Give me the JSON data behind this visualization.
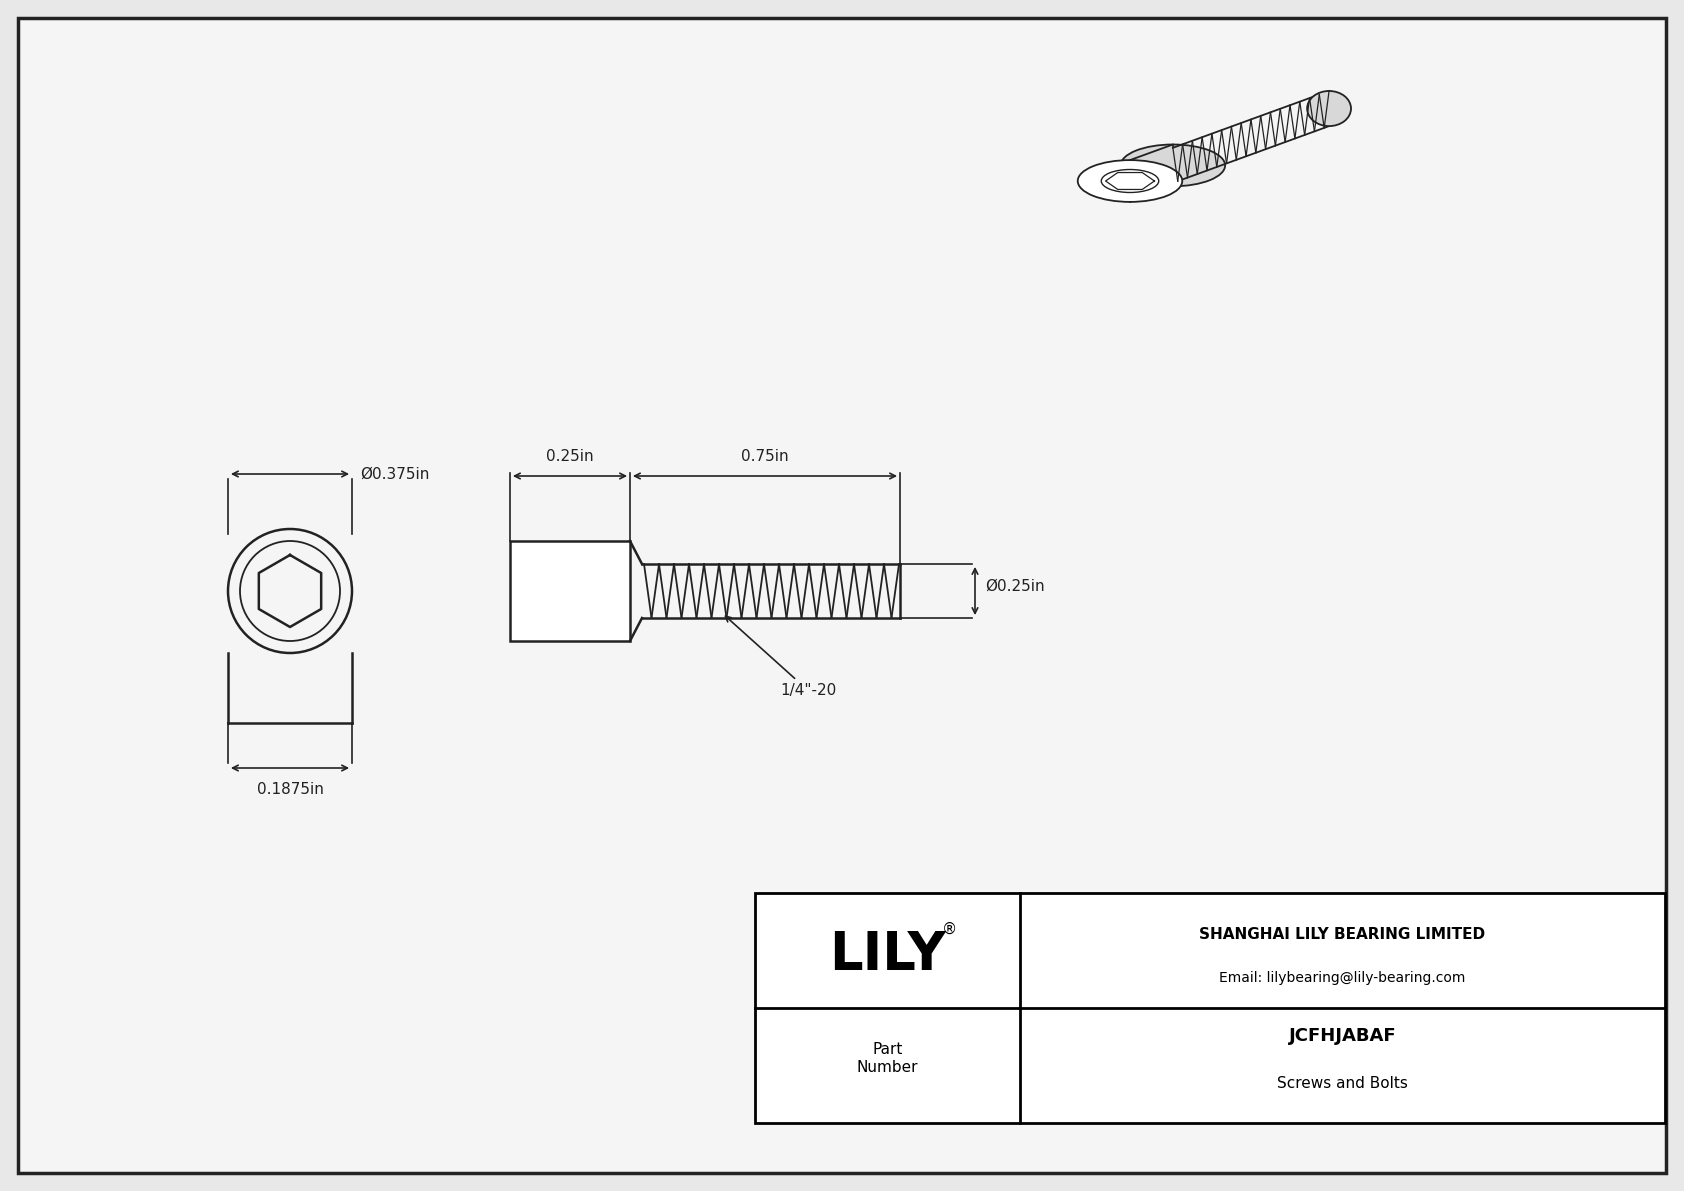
{
  "bg_color": "#e8e8e8",
  "drawing_bg": "#f5f5f5",
  "border_color": "#222222",
  "line_color": "#222222",
  "title": "JCFHJABAF",
  "subtitle": "Screws and Bolts",
  "company": "SHANGHAI LILY BEARING LIMITED",
  "email": "Email: lilybearing@lily-bearing.com",
  "part_label": "Part\nNumber",
  "lily_text": "LILY",
  "dim_head_diameter": "Ø0.375in",
  "dim_head_height": "0.1875in",
  "dim_shank_length": "0.75in",
  "dim_head_length": "0.25in",
  "dim_shank_diameter": "Ø0.25in",
  "dim_thread": "1/4\"-20",
  "font_size_large": 13,
  "font_size_medium": 11,
  "font_size_small": 9,
  "font_size_lily": 38
}
